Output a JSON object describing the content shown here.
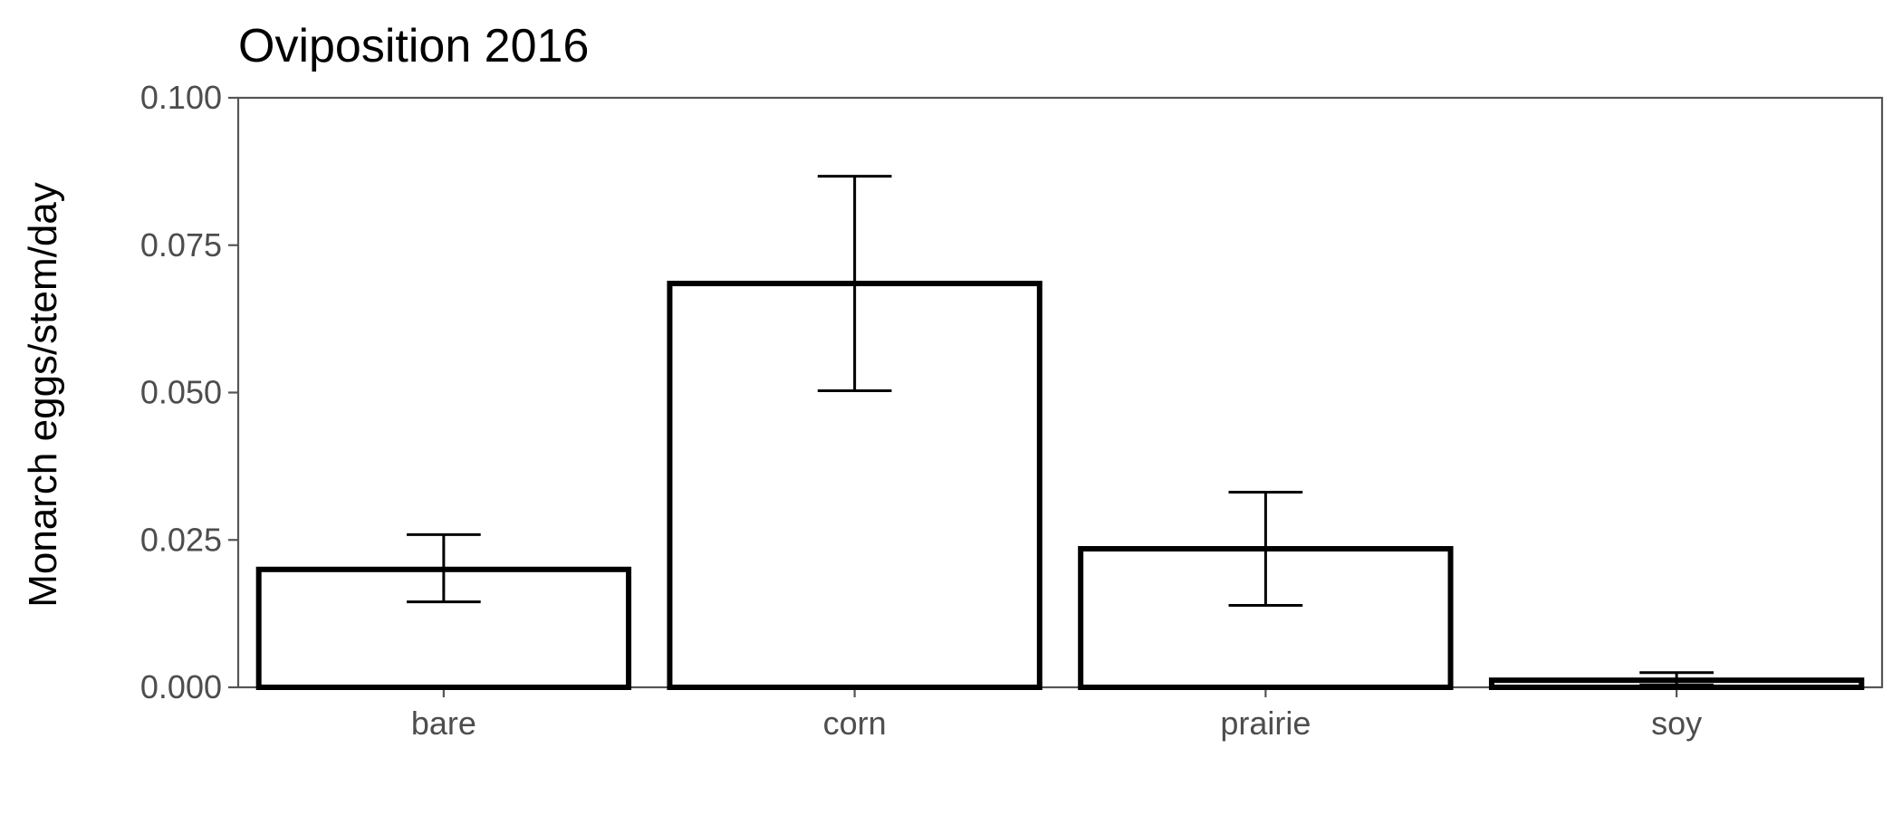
{
  "chart_data": {
    "type": "bar",
    "title": "Oviposition 2016",
    "xlabel": "",
    "ylabel": "Monarch eggs/stem/day",
    "categories": [
      "bare",
      "corn",
      "prairie",
      "soy"
    ],
    "values": [
      0.02,
      0.0685,
      0.0235,
      0.0012
    ],
    "error_low": [
      0.0145,
      0.0503,
      0.0139,
      0.0004
    ],
    "error_high": [
      0.0259,
      0.0867,
      0.0331,
      0.0025
    ],
    "ylim": [
      0,
      0.1
    ],
    "yticks": [
      "0.000",
      "0.025",
      "0.050",
      "0.075",
      "0.100"
    ],
    "grid": false,
    "legend": "none"
  }
}
